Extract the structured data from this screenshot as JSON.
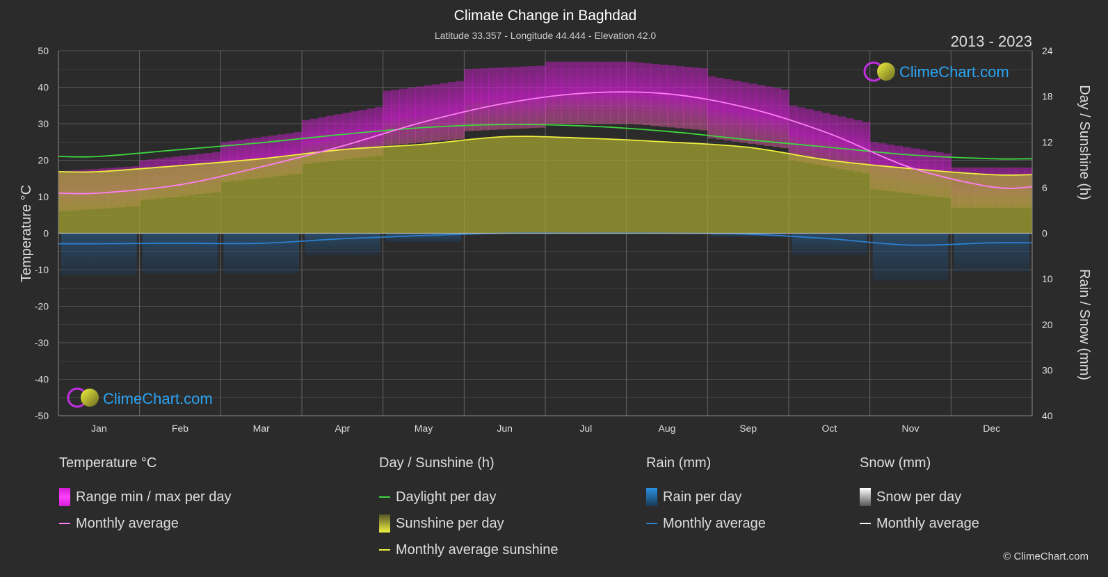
{
  "title": "Climate Change in Baghdad",
  "subtitle": "Latitude 33.357 - Longitude 44.444 - Elevation 42.0",
  "year_range": "2013 - 2023",
  "brand": "ClimeChart.com",
  "copyright": "© ClimeChart.com",
  "colors": {
    "background": "#2b2b2b",
    "grid": "#555555",
    "temp_range": "#d21ed2",
    "temp_avg": "#ff7ef5",
    "daylight": "#3fd63f",
    "sunshine_fill": "#a6a630",
    "sunshine_avg": "#f0f040",
    "rain": "#2a80d0",
    "snow": "#ffffff",
    "brand_text": "#2aa4f4"
  },
  "legend": {
    "temperature": {
      "title": "Temperature °C",
      "range": "Range min / max per day",
      "avg": "Monthly average"
    },
    "sunshine": {
      "title": "Day / Sunshine (h)",
      "daylight": "Daylight per day",
      "sunshine": "Sunshine per day",
      "avg": "Monthly average sunshine"
    },
    "rain": {
      "title": "Rain (mm)",
      "per_day": "Rain per day",
      "avg": "Monthly average"
    },
    "snow": {
      "title": "Snow (mm)",
      "per_day": "Snow per day",
      "avg": "Monthly average"
    }
  },
  "chart_data": {
    "type": "line",
    "categories": [
      "Jan",
      "Feb",
      "Mar",
      "Apr",
      "May",
      "Jun",
      "Jul",
      "Aug",
      "Sep",
      "Oct",
      "Nov",
      "Dec"
    ],
    "y_left": {
      "label": "Temperature °C",
      "range": [
        -50,
        50
      ],
      "ticks": [
        50,
        40,
        30,
        20,
        10,
        0,
        -10,
        -20,
        -30,
        -40,
        -50
      ]
    },
    "y_right_top": {
      "label": "Day / Sunshine (h)",
      "range": [
        0,
        24
      ],
      "ticks": [
        24,
        18,
        12,
        6,
        0
      ]
    },
    "y_right_bottom": {
      "label": "Rain / Snow (mm)",
      "range": [
        0,
        40
      ],
      "ticks": [
        0,
        10,
        20,
        30,
        40
      ]
    },
    "temperature_range": {
      "min": [
        6,
        9,
        14,
        19,
        24,
        28,
        30,
        30,
        26,
        20,
        12,
        7
      ],
      "max": [
        17,
        20,
        25,
        31,
        39,
        45,
        47,
        47,
        43,
        35,
        25,
        18
      ]
    },
    "temperature_avg": [
      11,
      13.3,
      18.2,
      23.9,
      30.5,
      35.6,
      38.4,
      38.2,
      34.3,
      27.3,
      18,
      12.7
    ],
    "daylight": [
      10.1,
      11,
      11.9,
      13,
      13.9,
      14.3,
      14.1,
      13.4,
      12.3,
      11.3,
      10.3,
      9.8
    ],
    "sunshine_avg": [
      8.1,
      8.9,
      9.8,
      11,
      11.7,
      12.7,
      12.5,
      12,
      11.3,
      9.6,
      8.5,
      7.7
    ],
    "rain_avg": [
      2.3,
      2.2,
      2.2,
      1.2,
      0.5,
      0,
      0,
      0,
      0.2,
      1.2,
      2.6,
      2.1
    ],
    "snow_avg": [
      0,
      0,
      0,
      0,
      0,
      0,
      0,
      0,
      0,
      0,
      0,
      0
    ],
    "grid": true
  }
}
